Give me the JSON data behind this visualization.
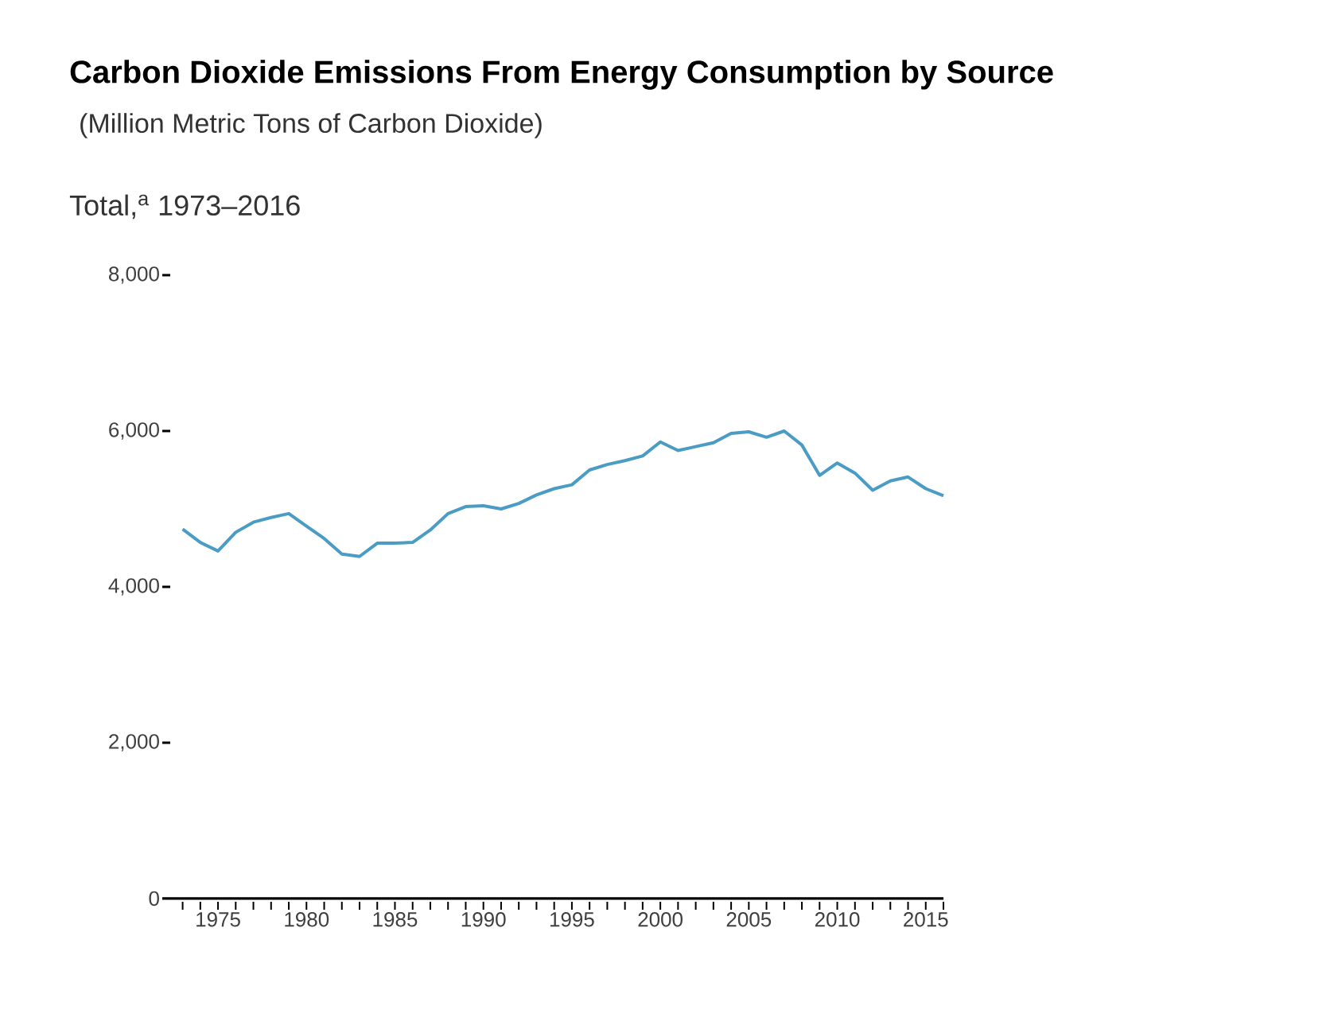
{
  "chart_data": {
    "type": "line",
    "title": "Carbon Dioxide Emissions From Energy Consumption by Source",
    "subtitle": "(Million Metric Tons of Carbon Dioxide)",
    "ylabel": "Total,$^{a}$ 1973–2016",
    "x": [
      1973,
      1974,
      1975,
      1976,
      1977,
      1978,
      1979,
      1980,
      1981,
      1982,
      1983,
      1984,
      1985,
      1986,
      1987,
      1988,
      1989,
      1990,
      1991,
      1992,
      1993,
      1994,
      1995,
      1996,
      1997,
      1998,
      1999,
      2000,
      2001,
      2002,
      2003,
      2004,
      2005,
      2006,
      2007,
      2008,
      2009,
      2010,
      2011,
      2012,
      2013,
      2014,
      2015,
      2016
    ],
    "values": [
      4740,
      4570,
      4460,
      4700,
      4830,
      4890,
      4940,
      4780,
      4620,
      4420,
      4390,
      4560,
      4560,
      4570,
      4730,
      4940,
      5030,
      5040,
      5000,
      5070,
      5180,
      5260,
      5310,
      5500,
      5570,
      5620,
      5680,
      5860,
      5750,
      5800,
      5850,
      5970,
      5990,
      5920,
      6000,
      5820,
      5430,
      5590,
      5460,
      5240,
      5360,
      5410,
      5260,
      5170
    ],
    "color": "#4a9cc4",
    "xlim": [
      1972.3,
      2016
    ],
    "ylim": [
      0,
      8000
    ],
    "yticks": [
      0,
      {
        "value": 2000,
        "label": "2,000"
      },
      {
        "value": 4000,
        "label": "4,000"
      },
      {
        "value": 6000,
        "label": "6,000"
      },
      {
        "value": 8000,
        "label": "8,000"
      }
    ],
    "xticks": [
      {
        "value": 1973,
        "label": null
      },
      {
        "value": 1974,
        "label": null
      },
      1975,
      {
        "value": 1976,
        "label": null
      },
      {
        "value": 1977,
        "label": null
      },
      {
        "value": 1978,
        "label": null
      },
      {
        "value": 1979,
        "label": null
      },
      1980,
      {
        "value": 1981,
        "label": null
      },
      {
        "value": 1982,
        "label": null
      },
      {
        "value": 1983,
        "label": null
      },
      {
        "value": 1984,
        "label": null
      },
      1985,
      {
        "value": 1986,
        "label": null
      },
      {
        "value": 1987,
        "label": null
      },
      {
        "value": 1988,
        "label": null
      },
      {
        "value": 1989,
        "label": null
      },
      1990,
      {
        "value": 1991,
        "label": null
      },
      {
        "value": 1992,
        "label": null
      },
      {
        "value": 1993,
        "label": null
      },
      {
        "value": 1994,
        "label": null
      },
      1995,
      {
        "value": 1996,
        "label": null
      },
      {
        "value": 1997,
        "label": null
      },
      {
        "value": 1998,
        "label": null
      },
      {
        "value": 1999,
        "label": null
      },
      2000,
      {
        "value": 2001,
        "label": null
      },
      {
        "value": 2002,
        "label": null
      },
      {
        "value": 2003,
        "label": null
      },
      {
        "value": 2004,
        "label": null
      },
      2005,
      {
        "value": 2006,
        "label": null
      },
      {
        "value": 2007,
        "label": null
      },
      {
        "value": 2008,
        "label": null
      },
      {
        "value": 2009,
        "label": null
      },
      2010,
      {
        "value": 2011,
        "label": null
      },
      {
        "value": 2012,
        "label": null
      },
      {
        "value": 2013,
        "label": null
      },
      {
        "value": 2014,
        "label": null
      },
      2015,
      {
        "value": 2016,
        "label": null
      }
    ],
    "grid": false,
    "marker": "none",
    "line_style": "solid"
  }
}
